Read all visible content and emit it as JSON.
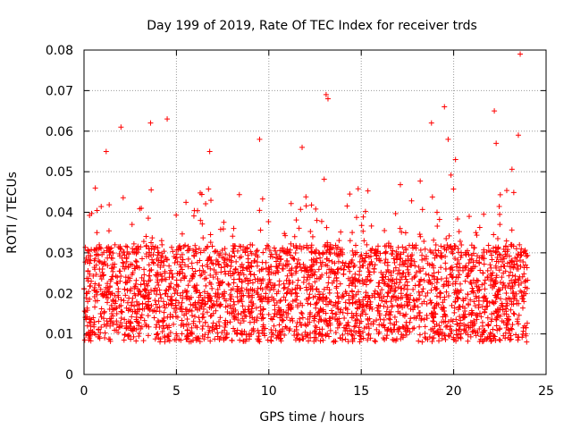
{
  "chart_data": {
    "type": "scatter",
    "title": "Day 199 of 2019, Rate Of TEC Index for receiver trds",
    "xlabel": "GPS time / hours",
    "ylabel": "ROTI / TECUs",
    "xlim": [
      0,
      25
    ],
    "ylim": [
      0,
      0.08
    ],
    "xticks": [
      0,
      5,
      10,
      15,
      20,
      25
    ],
    "xtick_labels": [
      "0",
      "5",
      "10",
      "15",
      "20",
      "25"
    ],
    "yticks": [
      0,
      0.01,
      0.02,
      0.03,
      0.04,
      0.05,
      0.06,
      0.07,
      0.08
    ],
    "ytick_labels": [
      "0",
      "0.01",
      "0.02",
      "0.03",
      "0.04",
      "0.05",
      "0.06",
      "0.07",
      "0.08"
    ],
    "grid": true,
    "marker": "+",
    "color": "#ff0000",
    "series": [
      {
        "name": "ROTI",
        "sample_density_note": "dense band 0.007-0.035 across 0-24 h; representative points below",
        "x": [
          0.2,
          0.5,
          0.8,
          1.0,
          1.2,
          1.5,
          1.8,
          2.0,
          2.2,
          2.5,
          2.8,
          3.0,
          3.3,
          3.5,
          3.8,
          4.0,
          4.3,
          4.6,
          4.9,
          5.2,
          5.5,
          5.8,
          6.1,
          6.4,
          6.7,
          7.0,
          7.3,
          7.6,
          7.9,
          8.2,
          8.5,
          8.8,
          9.1,
          9.4,
          9.7,
          10.0,
          10.3,
          10.6,
          10.9,
          11.2,
          11.5,
          11.8,
          12.1,
          12.4,
          12.7,
          13.0,
          13.3,
          13.6,
          13.9,
          14.2,
          14.5,
          14.8,
          15.1,
          15.4,
          15.7,
          16.0,
          16.3,
          16.6,
          16.9,
          17.2,
          17.5,
          17.8,
          18.1,
          18.4,
          18.7,
          19.0,
          19.3,
          19.6,
          19.9,
          20.2,
          20.5,
          20.8,
          21.1,
          21.4,
          21.7,
          22.0,
          22.3,
          22.6,
          22.9,
          23.2,
          23.5,
          23.8,
          1.2,
          2.0,
          3.6,
          4.5,
          6.8,
          9.5,
          11.8,
          13.1,
          13.2,
          18.8,
          19.5,
          19.7,
          20.1,
          22.2,
          22.3,
          23.5,
          23.6,
          0.3,
          0.7,
          1.4,
          2.6,
          3.1,
          4.2,
          5.6,
          6.3,
          7.4,
          8.1,
          9.0,
          10.2,
          11.4,
          12.6,
          13.5,
          14.4,
          15.6,
          16.2,
          17.1,
          18.2,
          19.1,
          20.4,
          21.2,
          22.5,
          23.1,
          23.9
        ],
        "y": [
          0.018,
          0.014,
          0.022,
          0.026,
          0.019,
          0.015,
          0.024,
          0.017,
          0.021,
          0.013,
          0.028,
          0.016,
          0.019,
          0.023,
          0.014,
          0.027,
          0.018,
          0.012,
          0.02,
          0.025,
          0.016,
          0.019,
          0.022,
          0.014,
          0.018,
          0.024,
          0.013,
          0.02,
          0.017,
          0.026,
          0.015,
          0.021,
          0.019,
          0.023,
          0.016,
          0.018,
          0.022,
          0.014,
          0.027,
          0.017,
          0.02,
          0.015,
          0.024,
          0.019,
          0.013,
          0.021,
          0.018,
          0.025,
          0.016,
          0.02,
          0.014,
          0.023,
          0.017,
          0.019,
          0.026,
          0.015,
          0.018,
          0.021,
          0.013,
          0.024,
          0.019,
          0.016,
          0.022,
          0.018,
          0.027,
          0.015,
          0.02,
          0.023,
          0.017,
          0.019,
          0.014,
          0.025,
          0.018,
          0.021,
          0.016,
          0.022,
          0.019,
          0.024,
          0.017,
          0.02,
          0.026,
          0.018,
          0.055,
          0.061,
          0.062,
          0.063,
          0.055,
          0.058,
          0.056,
          0.069,
          0.068,
          0.062,
          0.066,
          0.058,
          0.053,
          0.065,
          0.057,
          0.059,
          0.079,
          0.009,
          0.035,
          0.031,
          0.037,
          0.041,
          0.033,
          0.011,
          0.038,
          0.009,
          0.036,
          0.032,
          0.029,
          0.034,
          0.038,
          0.008,
          0.033,
          0.031,
          0.009,
          0.036,
          0.034,
          0.04,
          0.01,
          0.035,
          0.037,
          0.032,
          0.01
        ]
      }
    ]
  }
}
